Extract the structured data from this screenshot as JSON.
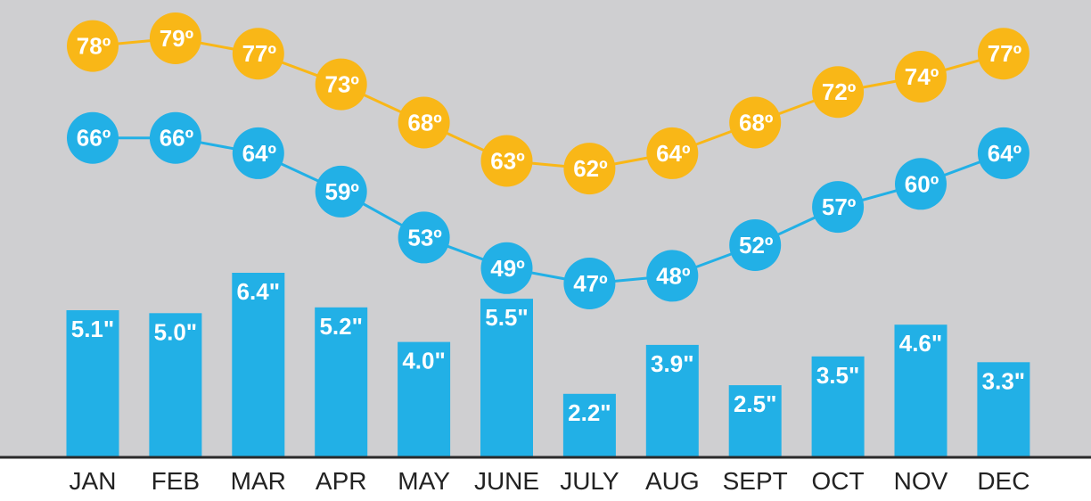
{
  "chart_data": {
    "type": "bar",
    "categories": [
      "JAN",
      "FEB",
      "MAR",
      "APR",
      "MAY",
      "JUNE",
      "JULY",
      "AUG",
      "SEPT",
      "OCT",
      "NOV",
      "DEC"
    ],
    "precipitation": {
      "values": [
        5.1,
        5.0,
        6.4,
        5.2,
        4.0,
        5.5,
        2.2,
        3.9,
        2.5,
        3.5,
        4.6,
        3.3
      ],
      "labels": [
        "5.1\"",
        "5.0\"",
        "6.4\"",
        "5.2\"",
        "4.0\"",
        "5.5\"",
        "2.2\"",
        "3.9\"",
        "2.5\"",
        "3.5\"",
        "4.6\"",
        "3.3\""
      ],
      "ylim": [
        0,
        6.4
      ],
      "color": "#22b0e6"
    },
    "high_temps": {
      "values": [
        78,
        79,
        77,
        73,
        68,
        63,
        62,
        64,
        68,
        72,
        74,
        77
      ],
      "labels": [
        "78º",
        "79º",
        "77º",
        "73º",
        "68º",
        "63º",
        "62º",
        "64º",
        "68º",
        "72º",
        "74º",
        "77º"
      ],
      "color": "#f9b717"
    },
    "low_temps": {
      "values": [
        66,
        66,
        64,
        59,
        53,
        49,
        47,
        48,
        52,
        57,
        60,
        64
      ],
      "labels": [
        "66º",
        "66º",
        "64º",
        "59º",
        "53º",
        "49º",
        "47º",
        "48º",
        "52º",
        "57º",
        "60º",
        "64º"
      ],
      "color": "#22b0e6"
    },
    "background_color": "#cfcfd1",
    "outside_label_color": "#6b6b6b",
    "baseline_color": "#2a2a2a"
  }
}
